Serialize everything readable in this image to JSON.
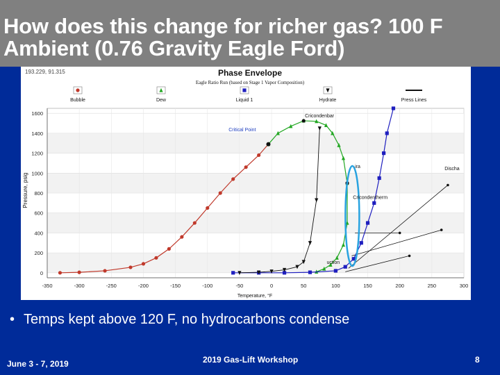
{
  "slide": {
    "title": "How does this change for richer gas? 100 F Ambient (0.76 Gravity Eagle Ford)",
    "bullet_marker": "•",
    "bullet_text": "Temps kept above 120 F, no hydrocarbons condense",
    "footer_date": "June 3 - 7, 2019",
    "footer_event": "2019 Gas-Lift Workshop",
    "page_number": "8",
    "colors": {
      "background": "#002b99",
      "title_bar": "#808080",
      "highlight_ellipse": "#29a3e0"
    }
  },
  "chart_data": {
    "type": "line",
    "title": "Phase Envelope",
    "subtitle": "Eagle Ratio Run (based on Stage 1 Vapor Composition)",
    "cursor_readout": "193.229, 91.315",
    "xlabel": "Temperature, °F",
    "ylabel": "Pressure, psig",
    "xlim": [
      -350,
      300
    ],
    "ylim": [
      -50,
      1650
    ],
    "x_ticks": [
      -350,
      -300,
      -250,
      -200,
      -150,
      -100,
      -50,
      0,
      50,
      100,
      150,
      200,
      250,
      300
    ],
    "y_ticks": [
      0,
      200,
      400,
      600,
      800,
      1000,
      1200,
      1400,
      1600
    ],
    "grid": true,
    "legend_position": "top",
    "legend": [
      {
        "label": "Bubble",
        "color": "#c0392b",
        "marker": "circle"
      },
      {
        "label": "Dew",
        "color": "#22a722",
        "marker": "triangle"
      },
      {
        "label": "Liquid 1",
        "color": "#1f1fbf",
        "marker": "square"
      },
      {
        "label": "Hydrate",
        "color": "#111111",
        "marker": "triangle-down"
      },
      {
        "label": "Press Lines",
        "color": "#111111",
        "marker": "line"
      }
    ],
    "series": [
      {
        "name": "Bubble",
        "color": "#c0392b",
        "x": [
          -330,
          -300,
          -260,
          -220,
          -200,
          -180,
          -160,
          -140,
          -120,
          -100,
          -80,
          -60,
          -40,
          -20,
          -5
        ],
        "y": [
          0,
          5,
          20,
          55,
          90,
          150,
          240,
          360,
          500,
          650,
          800,
          940,
          1060,
          1180,
          1290
        ]
      },
      {
        "name": "Dew",
        "color": "#22a722",
        "x": [
          -5,
          10,
          30,
          50,
          70,
          85,
          95,
          105,
          112,
          118,
          118,
          112,
          102,
          92,
          82,
          70
        ],
        "y": [
          1290,
          1400,
          1470,
          1525,
          1520,
          1480,
          1400,
          1280,
          1150,
          900,
          500,
          280,
          150,
          80,
          40,
          10
        ]
      },
      {
        "name": "Liquid 1",
        "color": "#1f1fbf",
        "x": [
          -60,
          -20,
          20,
          60,
          100,
          115,
          128,
          140,
          150,
          160,
          168,
          175,
          180,
          190
        ],
        "y": [
          0,
          0,
          0,
          5,
          20,
          60,
          140,
          300,
          500,
          700,
          950,
          1200,
          1400,
          1650
        ]
      },
      {
        "name": "Hydrate",
        "color": "#111111",
        "x": [
          -50,
          -20,
          0,
          20,
          40,
          50,
          60,
          70,
          75
        ],
        "y": [
          0,
          5,
          15,
          30,
          60,
          110,
          300,
          730,
          1450
        ]
      }
    ],
    "press_lines": [
      {
        "x": [
          120,
          275
        ],
        "y": [
          45,
          880
        ]
      },
      {
        "x": [
          125,
          265
        ],
        "y": [
          170,
          430
        ]
      },
      {
        "x": [
          130,
          200
        ],
        "y": [
          400,
          400
        ]
      },
      {
        "x": [
          115,
          215
        ],
        "y": [
          10,
          170
        ]
      }
    ],
    "annotations": [
      {
        "text": "Cricondenbar",
        "x": 52,
        "y": 1560
      },
      {
        "text": "Critical Point",
        "x": -67,
        "y": 1420
      },
      {
        "text": "Cricondentherm",
        "x": 127,
        "y": 740
      },
      {
        "text": "Discha",
        "x": 270,
        "y": 1030
      },
      {
        "text": "ira",
        "x": 130,
        "y": 1050
      },
      {
        "text": "uction",
        "x": 86,
        "y": 90
      }
    ]
  }
}
